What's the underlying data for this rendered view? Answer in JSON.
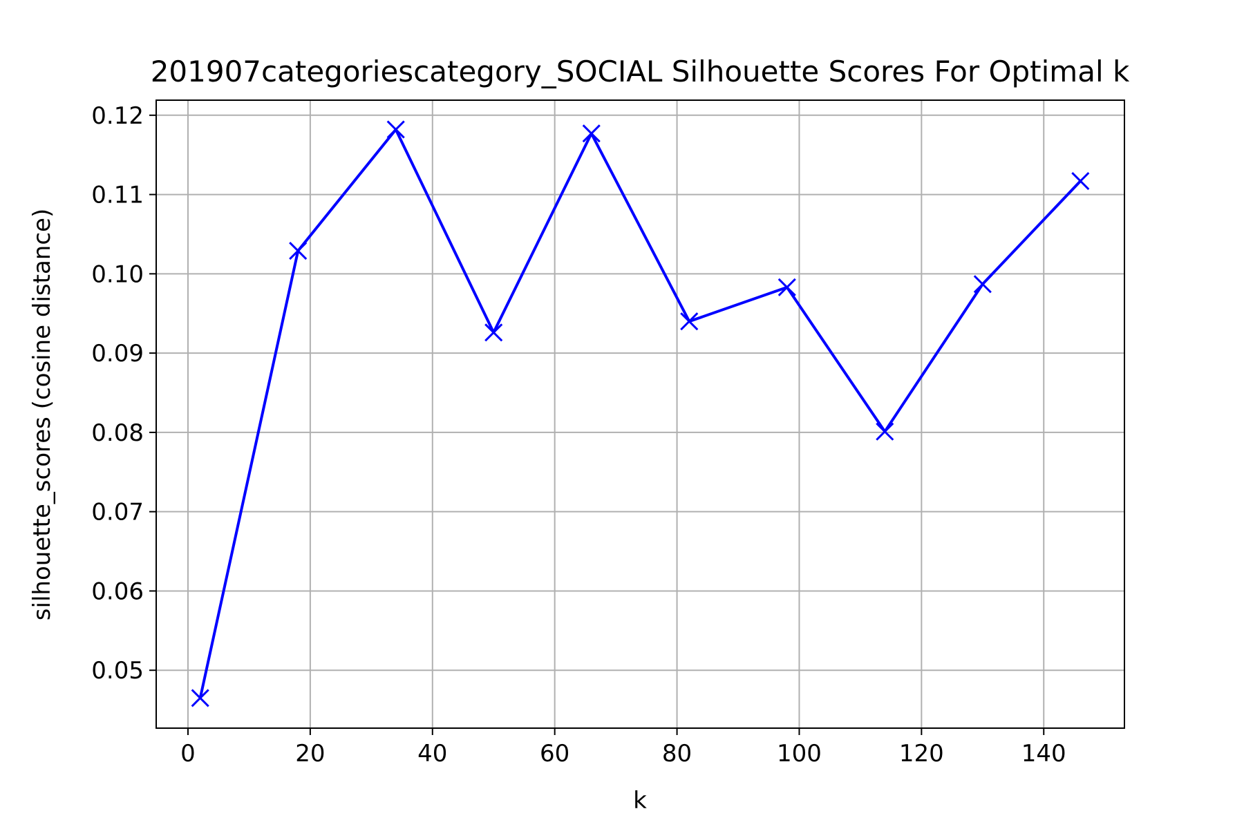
{
  "chart_data": {
    "type": "line",
    "title": "201907categoriescategory_SOCIAL Silhouette Scores For Optimal k",
    "xlabel": "k",
    "ylabel": "silhouette_scores (cosine distance)",
    "xlim": [
      -5.2,
      153.2
    ],
    "ylim": [
      0.0427,
      0.1219
    ],
    "xticks": [
      0,
      20,
      40,
      60,
      80,
      100,
      120,
      140
    ],
    "yticks": [
      0.05,
      0.06,
      0.07,
      0.08,
      0.09,
      0.1,
      0.11,
      0.12
    ],
    "xtick_labels": [
      "0",
      "20",
      "40",
      "60",
      "80",
      "100",
      "120",
      "140"
    ],
    "ytick_labels": [
      "0.05",
      "0.06",
      "0.07",
      "0.08",
      "0.09",
      "0.10",
      "0.11",
      "0.12"
    ],
    "grid": true,
    "marker": "x",
    "series": [
      {
        "color": "#0000ff",
        "x": [
          2,
          18,
          34,
          50,
          66,
          82,
          98,
          114,
          130,
          146
        ],
        "y": [
          0.0465,
          0.1029,
          0.1182,
          0.0926,
          0.1177,
          0.094,
          0.0983,
          0.0801,
          0.0987,
          0.1117
        ]
      }
    ]
  }
}
